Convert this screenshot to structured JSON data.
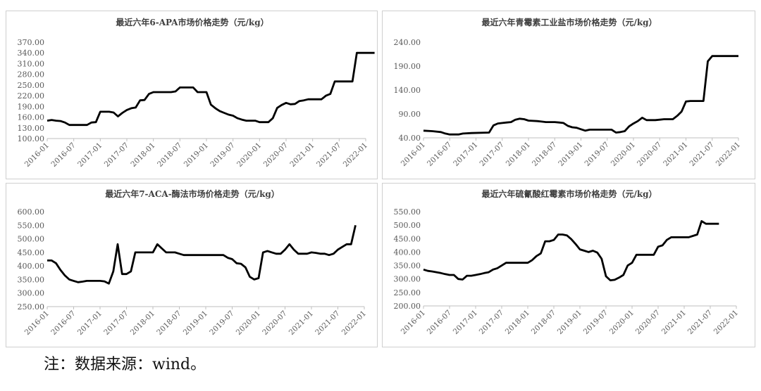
{
  "chart_data": [
    {
      "type": "line",
      "title": "最近六年6-APA市场价格走势（元/kg）",
      "yticks": [
        "370.00",
        "340.00",
        "310.00",
        "280.00",
        "250.00",
        "220.00",
        "190.00",
        "160.00",
        "130.00",
        "100.00"
      ],
      "ylim": [
        100,
        370
      ],
      "x_ticks": [
        "2016-01",
        "2016-07",
        "2017-01",
        "2017-07",
        "2018-01",
        "2018-07",
        "2019-01",
        "2019-07",
        "2020-01",
        "2020-07",
        "2021-01",
        "2021-07",
        "2022-01"
      ],
      "xlim": [
        0,
        72
      ],
      "grid": false,
      "legend": "none",
      "series": [
        {
          "values": [
            [
              0,
              150
            ],
            [
              1,
              152
            ],
            [
              2,
              150
            ],
            [
              3,
              149
            ],
            [
              4,
              145
            ],
            [
              5,
              138
            ],
            [
              7,
              138
            ],
            [
              9,
              138
            ],
            [
              10,
              145
            ],
            [
              11,
              146
            ],
            [
              12,
              175
            ],
            [
              14,
              175
            ],
            [
              15,
              173
            ],
            [
              16,
              162
            ],
            [
              17,
              172
            ],
            [
              18,
              180
            ],
            [
              19,
              185
            ],
            [
              20,
              187
            ],
            [
              21,
              207
            ],
            [
              22,
              208
            ],
            [
              23,
              225
            ],
            [
              24,
              230
            ],
            [
              28,
              230
            ],
            [
              29,
              232
            ],
            [
              30,
              243
            ],
            [
              33,
              243
            ],
            [
              34,
              230
            ],
            [
              36,
              230
            ],
            [
              37,
              195
            ],
            [
              38,
              185
            ],
            [
              39,
              177
            ],
            [
              40,
              172
            ],
            [
              41,
              167
            ],
            [
              42,
              164
            ],
            [
              43,
              157
            ],
            [
              44,
              153
            ],
            [
              45,
              150
            ],
            [
              47,
              150
            ],
            [
              48,
              146
            ],
            [
              50,
              146
            ],
            [
              51,
              157
            ],
            [
              52,
              186
            ],
            [
              53,
              194
            ],
            [
              54,
              200
            ],
            [
              55,
              196
            ],
            [
              56,
              197
            ],
            [
              57,
              205
            ],
            [
              58,
              207
            ],
            [
              59,
              210
            ],
            [
              62,
              210
            ],
            [
              63,
              220
            ],
            [
              64,
              225
            ],
            [
              65,
              260
            ],
            [
              68,
              260
            ],
            [
              69,
              260
            ],
            [
              70,
              340
            ],
            [
              74,
              340
            ]
          ]
        }
      ]
    },
    {
      "type": "line",
      "title": "最近六年青霉素工业盐市场价格走势（元/kg）",
      "yticks": [
        "240.00",
        "190.00",
        "140.00",
        "90.00",
        "40.00"
      ],
      "ylim": [
        40,
        240
      ],
      "x_ticks": [
        "2016-01",
        "2016-07",
        "2017-01",
        "2017-07",
        "2018-01",
        "2018-07",
        "2019-01",
        "2019-07",
        "2020-01",
        "2020-07",
        "2021-01",
        "2021-07",
        "2022-01"
      ],
      "xlim": [
        0,
        72
      ],
      "grid": false,
      "legend": "none",
      "series": [
        {
          "values": [
            [
              0,
              55
            ],
            [
              2,
              54
            ],
            [
              4,
              52
            ],
            [
              5,
              49
            ],
            [
              6,
              47
            ],
            [
              8,
              47
            ],
            [
              9,
              49
            ],
            [
              11,
              50
            ],
            [
              15,
              51
            ],
            [
              16,
              66
            ],
            [
              17,
              70
            ],
            [
              18,
              71
            ],
            [
              19,
              72
            ],
            [
              20,
              73
            ],
            [
              21,
              78
            ],
            [
              22,
              80
            ],
            [
              23,
              79
            ],
            [
              24,
              76
            ],
            [
              26,
              75
            ],
            [
              27,
              74
            ],
            [
              28,
              73
            ],
            [
              30,
              73
            ],
            [
              31,
              72
            ],
            [
              32,
              71
            ],
            [
              33,
              65
            ],
            [
              34,
              62
            ],
            [
              35,
              61
            ],
            [
              36,
              58
            ],
            [
              37,
              55
            ],
            [
              38,
              57
            ],
            [
              42,
              57
            ],
            [
              43,
              57
            ],
            [
              44,
              51
            ],
            [
              45,
              52
            ],
            [
              46,
              54
            ],
            [
              47,
              64
            ],
            [
              48,
              70
            ],
            [
              49,
              75
            ],
            [
              50,
              82
            ],
            [
              51,
              77
            ],
            [
              53,
              77
            ],
            [
              54,
              78
            ],
            [
              55,
              79
            ],
            [
              57,
              79
            ],
            [
              58,
              86
            ],
            [
              59,
              95
            ],
            [
              60,
              116
            ],
            [
              61,
              117
            ],
            [
              64,
              117
            ],
            [
              65,
              200
            ],
            [
              66,
              211
            ],
            [
              72,
              211
            ]
          ]
        }
      ]
    },
    {
      "type": "line",
      "title": "最近六年7-ACA-酶法市场价格走势（元/kg）",
      "yticks": [
        "600.00",
        "550.00",
        "500.00",
        "450.00",
        "400.00",
        "350.00",
        "300.00",
        "250.00"
      ],
      "ylim": [
        250,
        600
      ],
      "x_ticks": [
        "2016-01",
        "2016-07",
        "2017-01",
        "2017-07",
        "2018-01",
        "2018-07",
        "2019-01",
        "2019-07",
        "2020-01",
        "2020-07",
        "2021-01",
        "2021-07",
        "2022-01"
      ],
      "xlim": [
        0,
        72
      ],
      "grid": false,
      "legend": "none",
      "series": [
        {
          "values": [
            [
              0,
              420
            ],
            [
              1,
              420
            ],
            [
              2,
              410
            ],
            [
              3,
              385
            ],
            [
              4,
              365
            ],
            [
              5,
              350
            ],
            [
              6,
              345
            ],
            [
              7,
              340
            ],
            [
              8,
              342
            ],
            [
              9,
              345
            ],
            [
              10,
              345
            ],
            [
              11,
              345
            ],
            [
              12,
              345
            ],
            [
              13,
              343
            ],
            [
              14,
              335
            ],
            [
              15,
              380
            ],
            [
              16,
              480
            ],
            [
              17,
              370
            ],
            [
              18,
              370
            ],
            [
              19,
              380
            ],
            [
              20,
              450
            ],
            [
              24,
              450
            ],
            [
              25,
              480
            ],
            [
              26,
              465
            ],
            [
              27,
              450
            ],
            [
              28,
              450
            ],
            [
              29,
              450
            ],
            [
              30,
              445
            ],
            [
              31,
              440
            ],
            [
              40,
              440
            ],
            [
              41,
              430
            ],
            [
              42,
              425
            ],
            [
              43,
              410
            ],
            [
              44,
              408
            ],
            [
              45,
              395
            ],
            [
              46,
              360
            ],
            [
              47,
              350
            ],
            [
              48,
              355
            ],
            [
              49,
              450
            ],
            [
              50,
              455
            ],
            [
              51,
              450
            ],
            [
              52,
              445
            ],
            [
              53,
              445
            ],
            [
              54,
              460
            ],
            [
              55,
              480
            ],
            [
              56,
              460
            ],
            [
              57,
              445
            ],
            [
              58,
              445
            ],
            [
              59,
              445
            ],
            [
              60,
              450
            ],
            [
              61,
              448
            ],
            [
              62,
              445
            ],
            [
              63,
              445
            ],
            [
              64,
              440
            ],
            [
              65,
              445
            ],
            [
              66,
              460
            ],
            [
              67,
              470
            ],
            [
              68,
              480
            ],
            [
              69,
              480
            ],
            [
              70,
              550
            ]
          ]
        }
      ]
    },
    {
      "type": "line",
      "title": "最近六年硫氰酸红霉素市场价格走势（元/kg）",
      "yticks": [
        "550.00",
        "500.00",
        "450.00",
        "400.00",
        "350.00",
        "300.00",
        "250.00",
        "200.00"
      ],
      "ylim": [
        200,
        550
      ],
      "x_ticks": [
        "2016-01",
        "2016-07",
        "2017-01",
        "2017-07",
        "2018-01",
        "2018-07",
        "2019-01",
        "2019-07",
        "2020-01",
        "2020-07",
        "2021-01",
        "2021-07",
        "2022-01"
      ],
      "xlim": [
        0,
        72
      ],
      "grid": false,
      "legend": "none",
      "series": [
        {
          "values": [
            [
              0,
              335
            ],
            [
              1,
              330
            ],
            [
              2,
              328
            ],
            [
              3,
              325
            ],
            [
              4,
              322
            ],
            [
              5,
              318
            ],
            [
              6,
              315
            ],
            [
              7,
              315
            ],
            [
              8,
              300
            ],
            [
              9,
              298
            ],
            [
              10,
              312
            ],
            [
              11,
              312
            ],
            [
              12,
              315
            ],
            [
              13,
              318
            ],
            [
              14,
              322
            ],
            [
              15,
              325
            ],
            [
              16,
              335
            ],
            [
              17,
              340
            ],
            [
              18,
              350
            ],
            [
              19,
              360
            ],
            [
              20,
              360
            ],
            [
              24,
              360
            ],
            [
              25,
              370
            ],
            [
              26,
              385
            ],
            [
              27,
              395
            ],
            [
              28,
              440
            ],
            [
              29,
              440
            ],
            [
              30,
              445
            ],
            [
              31,
              465
            ],
            [
              32,
              465
            ],
            [
              33,
              462
            ],
            [
              34,
              448
            ],
            [
              35,
              430
            ],
            [
              36,
              410
            ],
            [
              37,
              405
            ],
            [
              38,
              400
            ],
            [
              39,
              405
            ],
            [
              40,
              398
            ],
            [
              41,
              375
            ],
            [
              42,
              310
            ],
            [
              43,
              295
            ],
            [
              44,
              297
            ],
            [
              45,
              305
            ],
            [
              46,
              315
            ],
            [
              47,
              350
            ],
            [
              48,
              360
            ],
            [
              49,
              390
            ],
            [
              50,
              390
            ],
            [
              51,
              390
            ],
            [
              52,
              390
            ],
            [
              53,
              390
            ],
            [
              54,
              420
            ],
            [
              55,
              425
            ],
            [
              56,
              445
            ],
            [
              57,
              455
            ],
            [
              58,
              455
            ],
            [
              59,
              455
            ],
            [
              60,
              455
            ],
            [
              61,
              455
            ],
            [
              62,
              460
            ],
            [
              63,
              465
            ],
            [
              64,
              515
            ],
            [
              65,
              505
            ],
            [
              66,
              505
            ],
            [
              67,
              505
            ],
            [
              68,
              505
            ]
          ]
        }
      ]
    }
  ],
  "note": "注：数据来源：wind。"
}
